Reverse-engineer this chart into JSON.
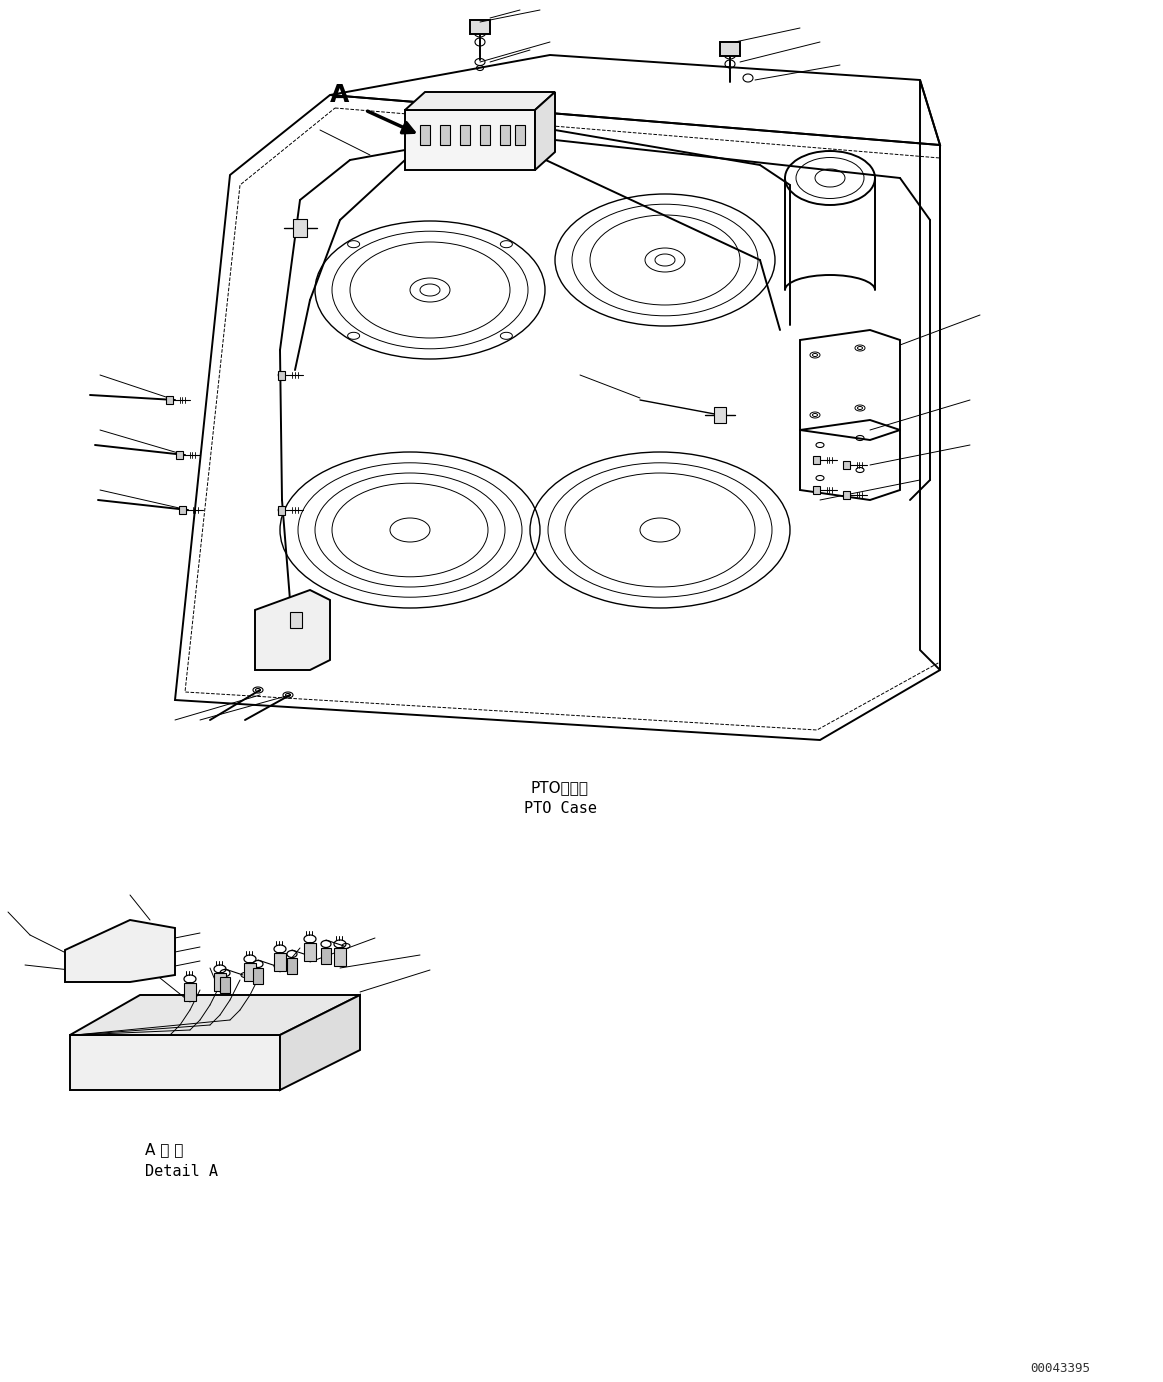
{
  "background_color": "#ffffff",
  "line_color": "#000000",
  "figure_width": 11.63,
  "figure_height": 13.82,
  "label_pto_case_jp": "PTOケース",
  "label_pto_case_en": "PTO Case",
  "label_detail_jp": "A 詳 細",
  "label_detail_en": "Detail A",
  "label_a": "A",
  "watermark": "00043395",
  "font_size_label": 11,
  "font_size_watermark": 9
}
